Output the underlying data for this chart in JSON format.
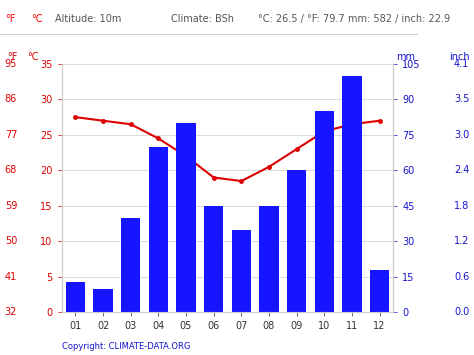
{
  "months": [
    "01",
    "02",
    "03",
    "04",
    "05",
    "06",
    "07",
    "08",
    "09",
    "10",
    "11",
    "12"
  ],
  "precipitation_mm": [
    13,
    10,
    40,
    70,
    80,
    45,
    35,
    45,
    60,
    85,
    100,
    18
  ],
  "temperature_c": [
    27.5,
    27,
    26.5,
    24.5,
    22,
    19,
    18.5,
    20.5,
    23,
    25.5,
    26.5,
    27
  ],
  "bar_color": "#1515ff",
  "line_color": "#dd0000",
  "marker_color": "#dd0000",
  "bg_color": "#ffffff",
  "grid_color": "#cccccc",
  "left_temp_color": "#dd0000",
  "right_precip_color": "#1515cc",
  "temp_yticks_c": [
    0,
    5,
    10,
    15,
    20,
    25,
    30,
    35
  ],
  "temp_yticks_f": [
    32,
    41,
    50,
    59,
    68,
    77,
    86,
    95
  ],
  "precip_yticks_mm": [
    0,
    15,
    30,
    45,
    60,
    75,
    90,
    105
  ],
  "precip_yticks_inch": [
    "0.0",
    "0.6",
    "1.2",
    "1.8",
    "2.4",
    "3.0",
    "3.5",
    "4.1"
  ],
  "copyright_text": "Copyright: CLIMATE-DATA.ORG",
  "ylim_temp": [
    0,
    35
  ],
  "ylim_precip": [
    0,
    105
  ]
}
